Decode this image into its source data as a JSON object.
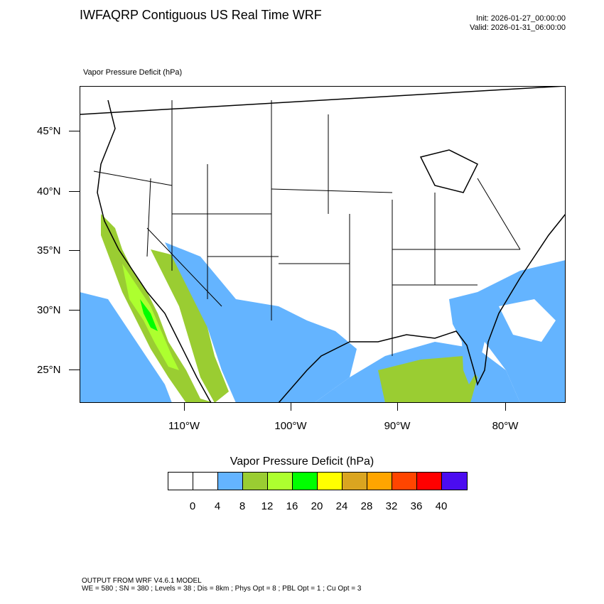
{
  "header": {
    "title": "IWFAQRP Contiguous US Real Time WRF",
    "init": "Init: 2026-01-27_00:00:00",
    "valid": "Valid: 2026-01-31_06:00:00"
  },
  "field_label": "Vapor Pressure Deficit   (hPa)",
  "axes": {
    "latitudes": [
      "45°N",
      "40°N",
      "35°N",
      "30°N",
      "25°N"
    ],
    "longitudes": [
      "110°W",
      "100°W",
      "90°W",
      "80°W"
    ]
  },
  "legend": {
    "title": "Vapor Pressure Deficit  (hPa)",
    "colors": [
      "#ffffff",
      "#ffffff",
      "#64b4ff",
      "#9acd32",
      "#adff2f",
      "#00ff00",
      "#ffff00",
      "#daa520",
      "#ffa500",
      "#ff4500",
      "#ff0000",
      "#4b0cf0"
    ],
    "ticks": [
      "0",
      "4",
      "8",
      "12",
      "16",
      "20",
      "24",
      "28",
      "32",
      "36",
      "40"
    ]
  },
  "footer": {
    "line1": "OUTPUT FROM WRF V4.6.1 MODEL",
    "line2": "WE = 580 ; SN = 380 ; Levels = 38 ; Dis = 8km ; Phys Opt = 8 ; PBL Opt = 1 ; Cu Opt = 3"
  }
}
